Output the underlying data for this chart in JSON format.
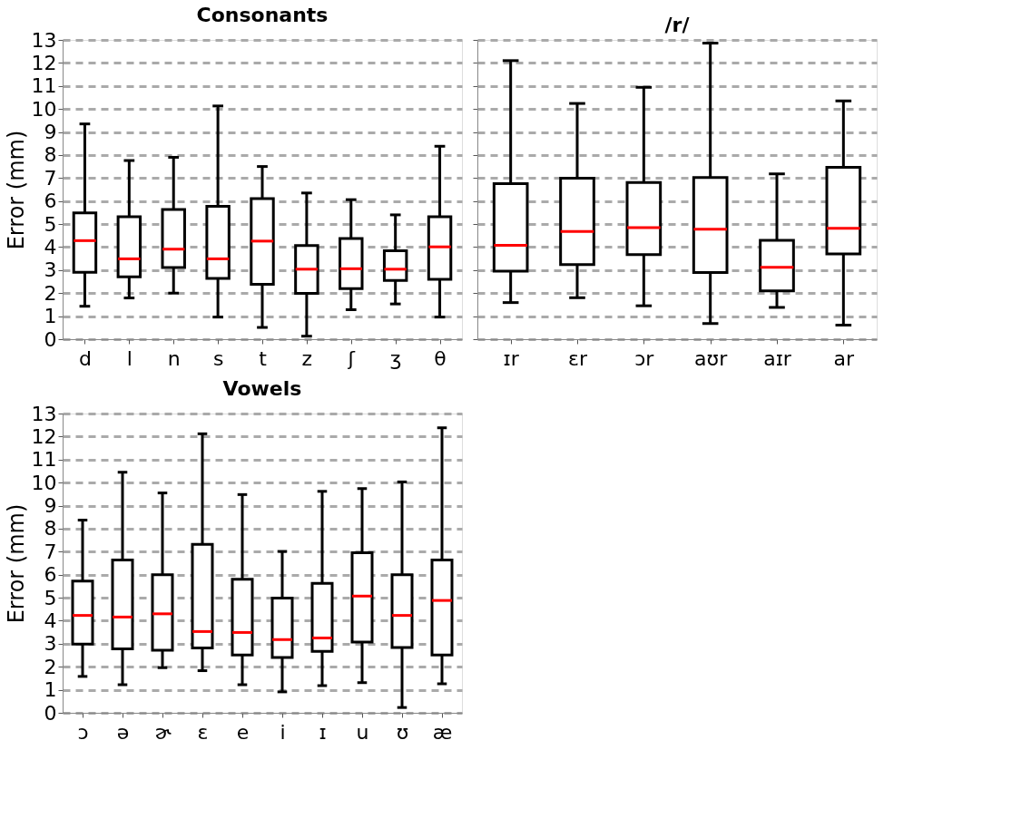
{
  "chart_data": [
    {
      "type": "box",
      "title": "Consonants",
      "ylabel": "Error (mm)",
      "ylim": [
        0,
        13
      ],
      "yticks": [
        0,
        1,
        2,
        3,
        4,
        5,
        6,
        7,
        8,
        9,
        10,
        11,
        12,
        13
      ],
      "grid": "y",
      "categories": [
        "d",
        "l",
        "n",
        "s",
        "t",
        "z",
        "ʃ",
        "ʒ",
        "θ"
      ],
      "series": [
        {
          "color": "#000000",
          "boxes": [
            {
              "low": 1.43,
              "q1": 2.91,
              "median": 4.28,
              "q3": 5.49,
              "high": 9.35
            },
            {
              "low": 1.79,
              "q1": 2.71,
              "median": 3.49,
              "q3": 5.32,
              "high": 7.76
            },
            {
              "low": 2.0,
              "q1": 3.11,
              "median": 3.91,
              "q3": 5.63,
              "high": 7.9
            },
            {
              "low": 0.96,
              "q1": 2.64,
              "median": 3.49,
              "q3": 5.77,
              "high": 10.13
            },
            {
              "low": 0.51,
              "q1": 2.38,
              "median": 4.26,
              "q3": 6.11,
              "high": 7.5
            },
            {
              "low": 0.13,
              "q1": 1.99,
              "median": 3.04,
              "q3": 4.07,
              "high": 6.35
            },
            {
              "low": 1.28,
              "q1": 2.2,
              "median": 3.06,
              "q3": 4.37,
              "high": 6.06
            },
            {
              "low": 1.53,
              "q1": 2.55,
              "median": 3.04,
              "q3": 3.84,
              "high": 5.4
            },
            {
              "low": 0.96,
              "q1": 2.6,
              "median": 4.01,
              "q3": 5.32,
              "high": 8.38
            }
          ]
        }
      ]
    },
    {
      "type": "box",
      "title": "/r/",
      "ylim": [
        0,
        13
      ],
      "yticks": [
        0,
        1,
        2,
        3,
        4,
        5,
        6,
        7,
        8,
        9,
        10,
        11,
        12,
        13
      ],
      "grid": "y",
      "tick_labels": "x",
      "categories": [
        "ɪr",
        "ɛr",
        "ɔr",
        "aʊr",
        "aɪr",
        "ar"
      ],
      "series": [
        {
          "color": "#000000",
          "boxes": [
            {
              "low": 1.59,
              "q1": 2.95,
              "median": 4.08,
              "q3": 6.76,
              "high": 12.1
            },
            {
              "low": 1.8,
              "q1": 3.24,
              "median": 4.68,
              "q3": 6.99,
              "high": 10.24
            },
            {
              "low": 1.45,
              "q1": 3.67,
              "median": 4.85,
              "q3": 6.81,
              "high": 10.94
            },
            {
              "low": 0.68,
              "q1": 2.9,
              "median": 4.78,
              "q3": 7.02,
              "high": 12.86
            },
            {
              "low": 1.38,
              "q1": 2.1,
              "median": 3.12,
              "q3": 4.29,
              "high": 7.18
            },
            {
              "low": 0.61,
              "q1": 3.7,
              "median": 4.82,
              "q3": 7.47,
              "high": 10.35
            }
          ]
        }
      ]
    },
    {
      "type": "box",
      "title": "Vowels",
      "ylabel": "Error (mm)",
      "ylim": [
        0,
        13
      ],
      "yticks": [
        0,
        1,
        2,
        3,
        4,
        5,
        6,
        7,
        8,
        9,
        10,
        11,
        12,
        13
      ],
      "grid": "y",
      "categories": [
        "ɔ",
        "ə",
        "ɚ",
        "ɛ",
        "e",
        "i",
        "ɪ",
        "u",
        "ʊ",
        "æ"
      ],
      "series": [
        {
          "color": "#000000",
          "boxes": [
            {
              "low": 1.58,
              "q1": 2.98,
              "median": 4.23,
              "q3": 5.72,
              "high": 8.37
            },
            {
              "low": 1.22,
              "q1": 2.78,
              "median": 4.16,
              "q3": 6.64,
              "high": 10.45
            },
            {
              "low": 1.96,
              "q1": 2.72,
              "median": 4.3,
              "q3": 6.0,
              "high": 9.55
            },
            {
              "low": 1.83,
              "q1": 2.82,
              "median": 3.53,
              "q3": 7.32,
              "high": 12.12
            },
            {
              "low": 1.22,
              "q1": 2.51,
              "median": 3.49,
              "q3": 5.8,
              "high": 9.48
            },
            {
              "low": 0.91,
              "q1": 2.4,
              "median": 3.18,
              "q3": 4.98,
              "high": 7.01
            },
            {
              "low": 1.18,
              "q1": 2.67,
              "median": 3.25,
              "q3": 5.62,
              "high": 9.62
            },
            {
              "low": 1.31,
              "q1": 3.07,
              "median": 5.07,
              "q3": 6.95,
              "high": 9.74
            },
            {
              "low": 0.23,
              "q1": 2.84,
              "median": 4.23,
              "q3": 6.0,
              "high": 10.03
            },
            {
              "low": 1.26,
              "q1": 2.51,
              "median": 4.88,
              "q3": 6.64,
              "high": 12.38
            }
          ]
        }
      ]
    }
  ]
}
